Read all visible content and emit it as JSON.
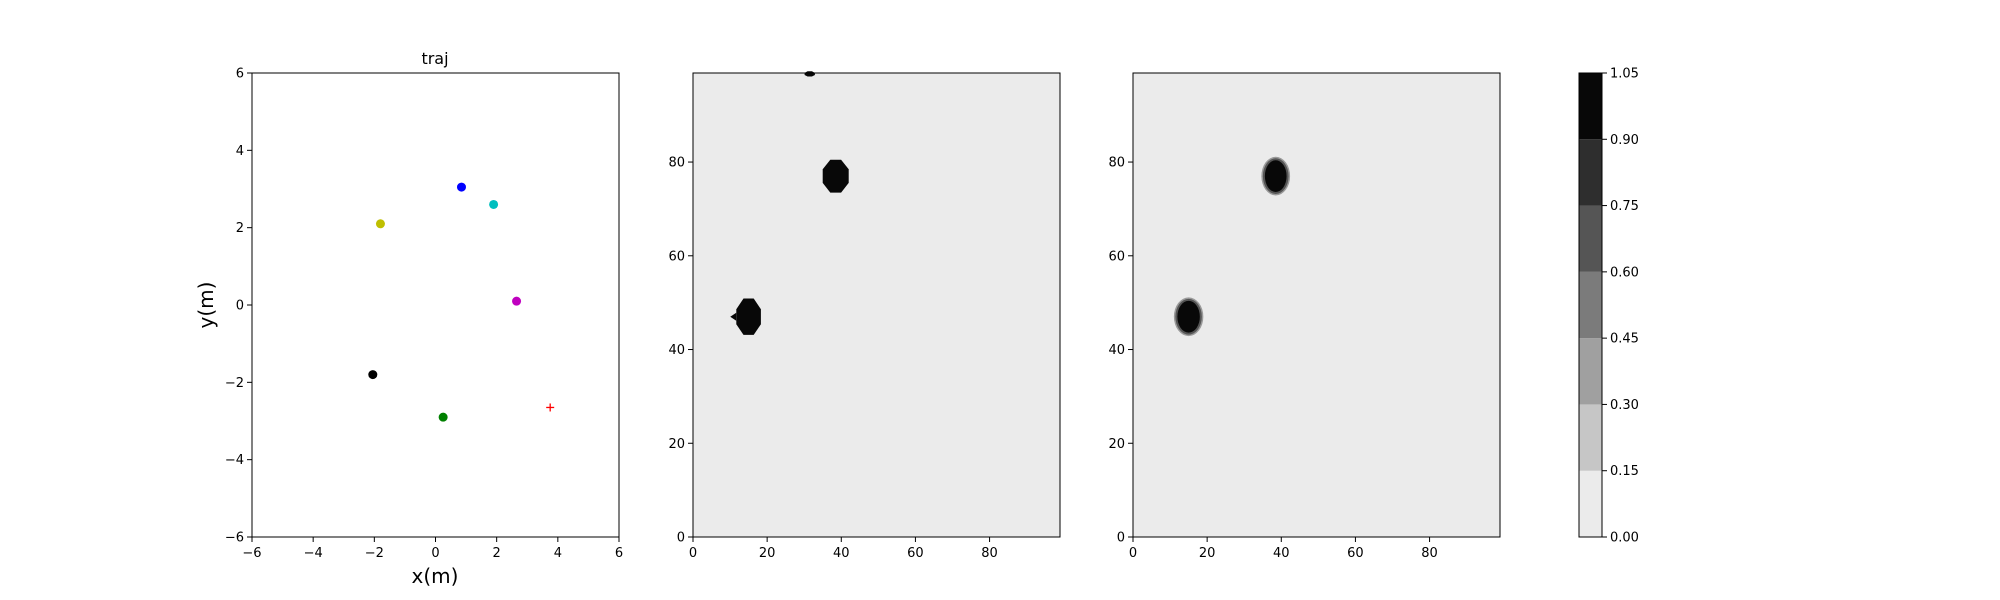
{
  "chart_data": [
    {
      "type": "scatter",
      "title": "traj",
      "xlabel": "x(m)",
      "ylabel": "y(m)",
      "xlim": [
        -6,
        6
      ],
      "ylim": [
        -6,
        6
      ],
      "xticks": [
        -6,
        -4,
        -2,
        0,
        2,
        4,
        6
      ],
      "yticks": [
        -6,
        -4,
        -2,
        0,
        2,
        4,
        6
      ],
      "grid": false,
      "points": [
        {
          "x": 0.85,
          "y": 3.05,
          "color": "#0000ff",
          "marker": "circle"
        },
        {
          "x": 1.9,
          "y": 2.6,
          "color": "#00bfbf",
          "marker": "circle"
        },
        {
          "x": -1.8,
          "y": 2.1,
          "color": "#bfbf00",
          "marker": "circle"
        },
        {
          "x": 2.65,
          "y": 0.1,
          "color": "#bf00bf",
          "marker": "circle"
        },
        {
          "x": -2.05,
          "y": -1.8,
          "color": "#000000",
          "marker": "circle"
        },
        {
          "x": 0.25,
          "y": -2.9,
          "color": "#008000",
          "marker": "circle"
        },
        {
          "x": 3.75,
          "y": -2.65,
          "color": "#ff0000",
          "marker": "plus"
        }
      ]
    },
    {
      "type": "heatmap",
      "xlim": [
        0,
        99
      ],
      "ylim": [
        0,
        99
      ],
      "xticks": [
        0,
        20,
        40,
        60,
        80
      ],
      "yticks": [
        0,
        20,
        40,
        60,
        80
      ],
      "background_value": 0.08,
      "blobs": [
        {
          "cx": 15,
          "cy": 47,
          "rx": 3.6,
          "ry": 4.2,
          "value": 1.0,
          "notch": "left"
        },
        {
          "cx": 38.5,
          "cy": 77,
          "rx": 3.8,
          "ry": 3.8,
          "value": 1.0
        },
        {
          "cx": 31.5,
          "cy": 98.8,
          "rx": 1.5,
          "ry": 0.6,
          "value": 1.0
        }
      ]
    },
    {
      "type": "heatmap",
      "xlim": [
        0,
        99
      ],
      "ylim": [
        0,
        99
      ],
      "xticks": [
        0,
        20,
        40,
        60,
        80
      ],
      "yticks": [
        0,
        20,
        40,
        60,
        80
      ],
      "background_value": 0.08,
      "blobs": [
        {
          "cx": 15,
          "cy": 47,
          "rx": 3.3,
          "ry": 3.6,
          "value": 1.0,
          "soft": true
        },
        {
          "cx": 38.5,
          "cy": 77,
          "rx": 3.2,
          "ry": 3.6,
          "value": 1.0,
          "soft": true
        }
      ]
    }
  ],
  "colorbar": {
    "levels": [
      0.0,
      0.15,
      0.3,
      0.45,
      0.6,
      0.75,
      0.9,
      1.05
    ],
    "tick_labels": [
      "0.00",
      "0.15",
      "0.30",
      "0.45",
      "0.60",
      "0.75",
      "0.90",
      "1.05"
    ],
    "band_colors": [
      "#ebebeb",
      "#c6c6c6",
      "#a0a0a0",
      "#7b7b7b",
      "#555555",
      "#2e2e2e",
      "#080808"
    ]
  }
}
